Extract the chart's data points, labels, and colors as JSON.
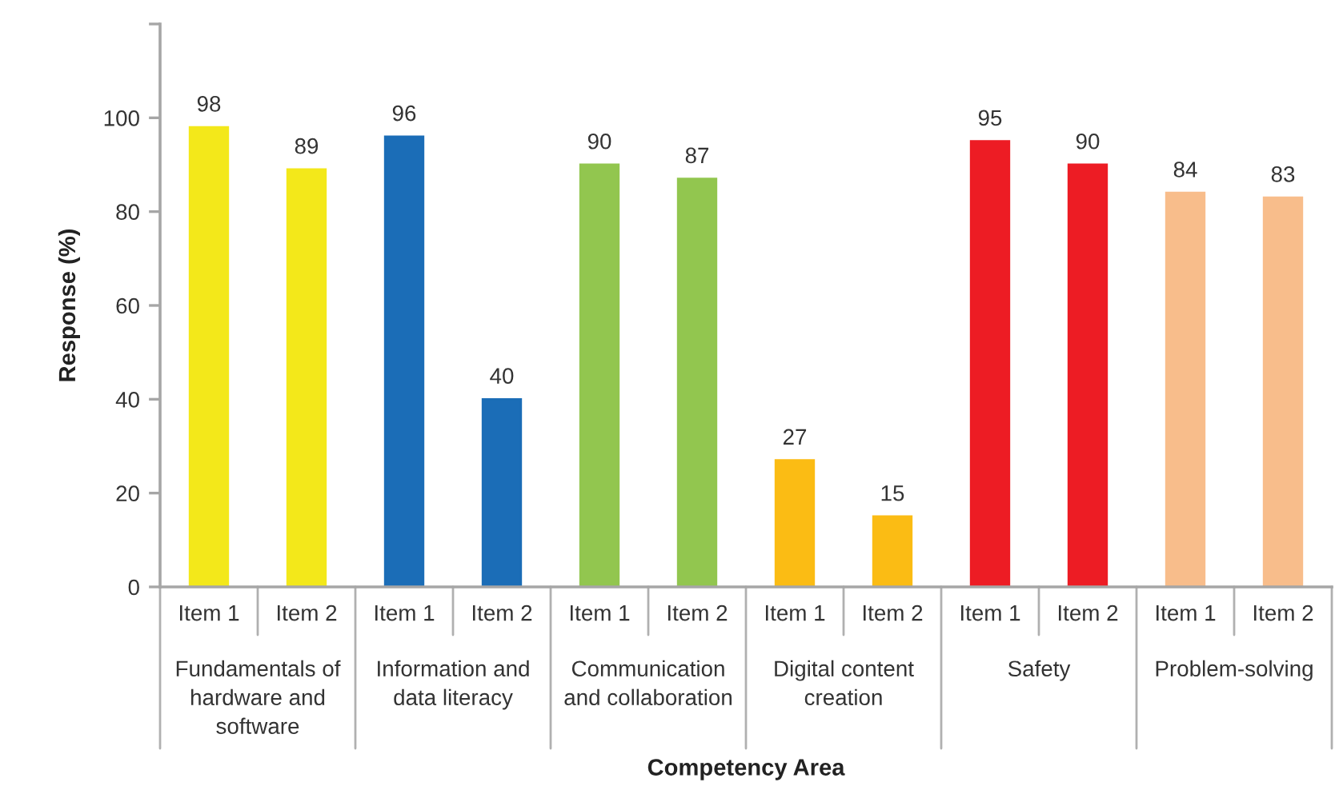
{
  "chart_data": {
    "type": "bar",
    "xlabel": "Competency Area",
    "ylabel": "Response (%)",
    "categories": [
      "Fundamentals of\nhardware and\nsoftware",
      "Information and\ndata literacy",
      "Communication\nand collaboration",
      "Digital content\ncreation",
      "Safety",
      "Problem-solving"
    ],
    "series": [
      {
        "name": "Item 1",
        "values": [
          98,
          96,
          90,
          27,
          95,
          84
        ],
        "colors": [
          "#f3e81a",
          "#1b6db7",
          "#92c64f",
          "#fbbc14",
          "#ed1c24",
          "#f8bd8b"
        ]
      },
      {
        "name": "Item 2",
        "values": [
          89,
          40,
          87,
          15,
          90,
          83
        ],
        "colors": [
          "#f3e81a",
          "#1b6db7",
          "#92c64f",
          "#fbbc14",
          "#ed1c24",
          "#f8bd8b"
        ]
      }
    ],
    "ylim": [
      0,
      120
    ],
    "yticks": [
      0,
      20,
      40,
      60,
      80,
      100,
      {
        "value": 120,
        "label": null
      }
    ],
    "data_labels": true
  }
}
